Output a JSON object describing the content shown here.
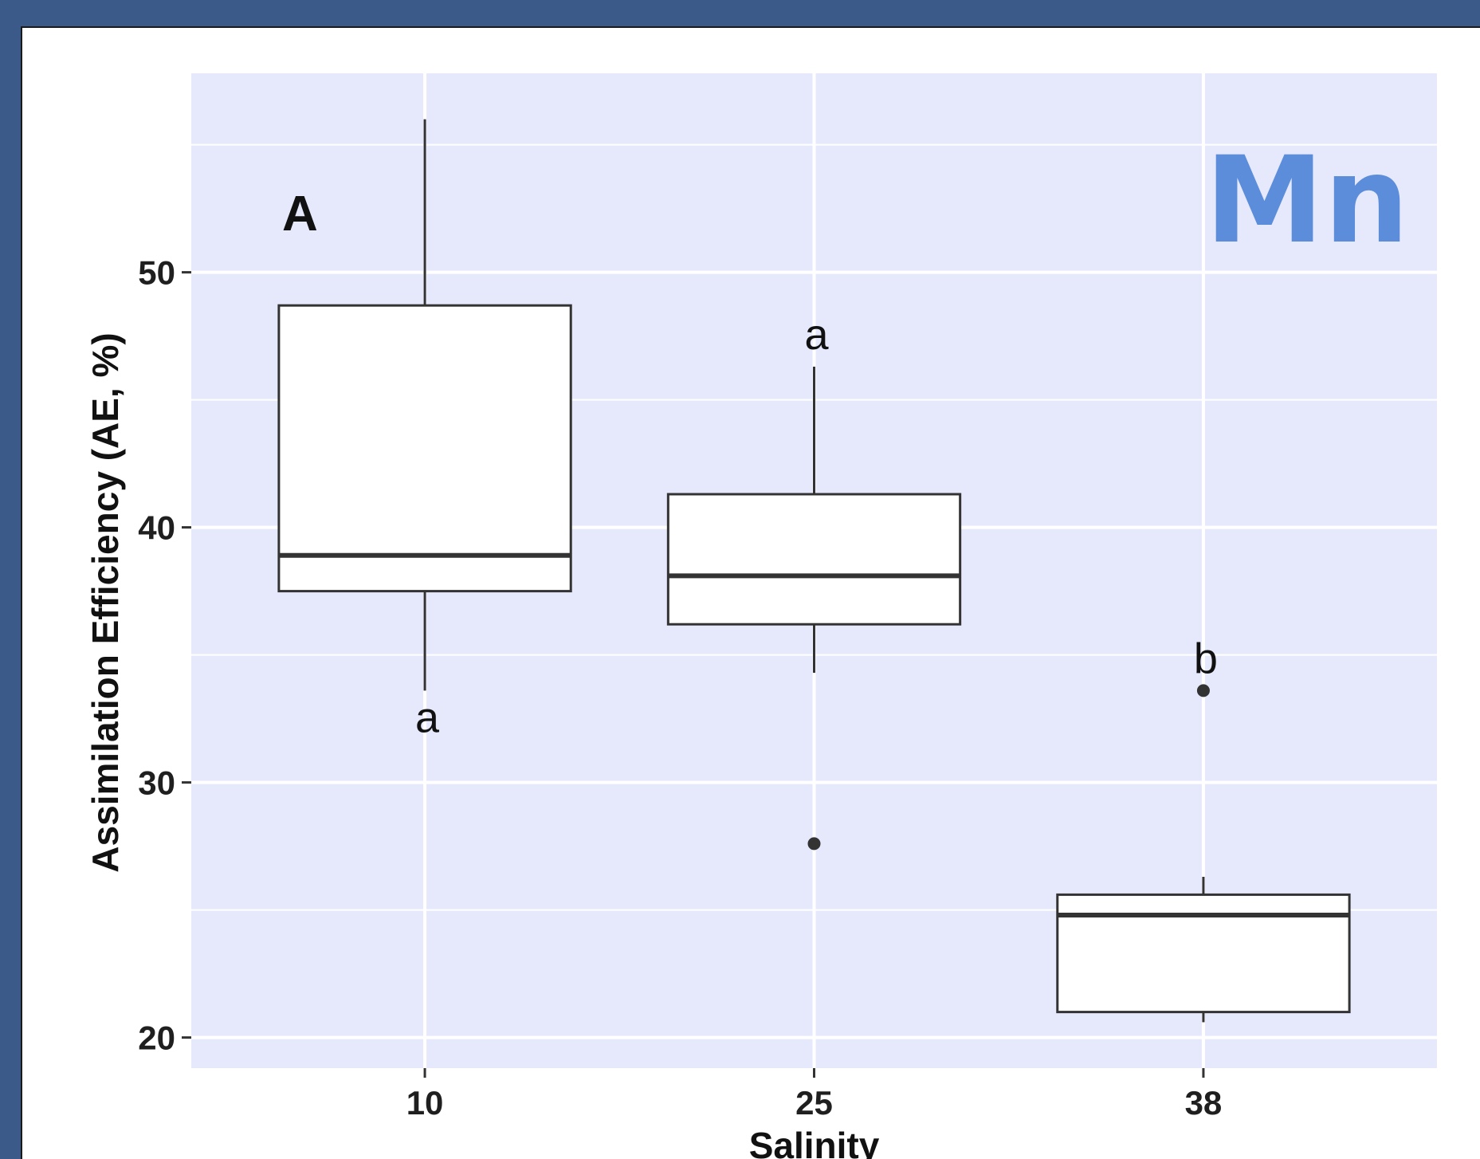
{
  "chart_data": {
    "type": "box",
    "ylabel": "Assimilation Efficiency (AE, %)",
    "xlabel": "Salinity",
    "yticks": [
      20,
      30,
      40,
      50
    ],
    "ylim": [
      18.8,
      57.8
    ],
    "grid": true,
    "panel_label": "A",
    "element_label": "Mn",
    "element_color": "#5b8ddb",
    "plot_background": "#e6e9fc",
    "categories": [
      "10",
      "25",
      "38"
    ],
    "boxes": [
      {
        "category": "10",
        "whisker_low": 33.6,
        "q1": 37.5,
        "median": 38.9,
        "q3": 48.7,
        "whisker_high": 56.0,
        "outliers": [],
        "group_letter": "a",
        "letter_position": "below"
      },
      {
        "category": "25",
        "whisker_low": 34.3,
        "q1": 36.2,
        "median": 38.1,
        "q3": 41.3,
        "whisker_high": 46.3,
        "outliers": [
          27.6
        ],
        "group_letter": "a",
        "letter_position": "above"
      },
      {
        "category": "38",
        "whisker_low": 20.6,
        "q1": 21.0,
        "median": 24.8,
        "q3": 25.6,
        "whisker_high": 26.3,
        "outliers": [
          33.6
        ],
        "group_letter": "b",
        "letter_position": "above"
      }
    ]
  }
}
